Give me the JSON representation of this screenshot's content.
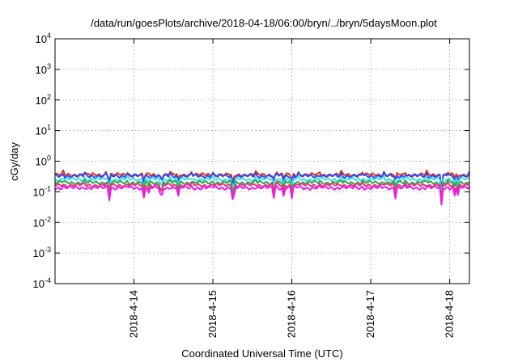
{
  "chart_data": {
    "type": "line",
    "title": "/data/run/goesPlots/archive/2018-04-18/06:00/bryn/../bryn/5daysMoon.plot",
    "xlabel": "Coordinated Universal Time (UTC)",
    "ylabel": "cGy/day",
    "yscale": "log",
    "ylim": [
      0.0001,
      10000
    ],
    "y_ticks": [
      {
        "value": 0.0001,
        "base": "10",
        "exp": "-4"
      },
      {
        "value": 0.001,
        "base": "10",
        "exp": "-3"
      },
      {
        "value": 0.01,
        "base": "10",
        "exp": "-2"
      },
      {
        "value": 0.1,
        "base": "10",
        "exp": "-1"
      },
      {
        "value": 1,
        "base": "10",
        "exp": "0"
      },
      {
        "value": 10,
        "base": "10",
        "exp": "1"
      },
      {
        "value": 100,
        "base": "10",
        "exp": "2"
      },
      {
        "value": 1000,
        "base": "10",
        "exp": "3"
      },
      {
        "value": 10000,
        "base": "10",
        "exp": "4"
      }
    ],
    "xlim": [
      "2018-04-13 00:00",
      "2018-04-18 06:00"
    ],
    "x_ticks": [
      {
        "value": "2018-04-14 00:00",
        "label": "2018-4-14"
      },
      {
        "value": "2018-04-15 00:00",
        "label": "2018-4-15"
      },
      {
        "value": "2018-04-16 00:00",
        "label": "2018-4-16"
      },
      {
        "value": "2018-04-17 00:00",
        "label": "2018-4-17"
      },
      {
        "value": "2018-04-18 00:00",
        "label": "2018-4-18"
      }
    ],
    "grid": true,
    "legend": "none",
    "series": [
      {
        "color": "#e8331c",
        "base": 0.36,
        "dip": 0.7,
        "spike": 1.25
      },
      {
        "color": "#2b4bf2",
        "base": 0.33,
        "dip": 0.7,
        "spike": 1.2
      },
      {
        "color": "#3ce0e8",
        "base": 0.255,
        "dip": 0.6,
        "spike": 1.15
      },
      {
        "color": "#2aa84a",
        "base": 0.2,
        "dip": 0.55,
        "spike": 1.12
      },
      {
        "color": "#f0327c",
        "base": 0.165,
        "dip": 0.5,
        "spike": 1.1
      },
      {
        "color": "#e81ee8",
        "base": 0.135,
        "dip": 0.45,
        "spike": 1.1
      }
    ],
    "dips": [
      {
        "time": "2018-04-13 16:30",
        "factor": 0.5
      },
      {
        "time": "2018-04-14 03:00",
        "factor": 0.55
      },
      {
        "time": "2018-04-14 04:30",
        "factor": 0.7
      },
      {
        "time": "2018-04-14 08:00",
        "factor": 0.75
      },
      {
        "time": "2018-04-14 08:30",
        "factor": 0.65
      },
      {
        "time": "2018-04-14 13:30",
        "factor": 0.6
      },
      {
        "time": "2018-04-15 06:00",
        "factor": 0.45
      },
      {
        "time": "2018-04-15 06:30",
        "factor": 0.6
      },
      {
        "time": "2018-04-15 18:30",
        "factor": 0.6
      },
      {
        "time": "2018-04-15 21:30",
        "factor": 0.65
      },
      {
        "time": "2018-04-16 00:00",
        "factor": 0.55
      },
      {
        "time": "2018-04-17 07:30",
        "factor": 0.6
      },
      {
        "time": "2018-04-17 21:30",
        "factor": 0.25
      },
      {
        "time": "2018-04-18 01:30",
        "factor": 0.7
      },
      {
        "time": "2018-04-18 02:30",
        "factor": 0.65
      }
    ]
  }
}
